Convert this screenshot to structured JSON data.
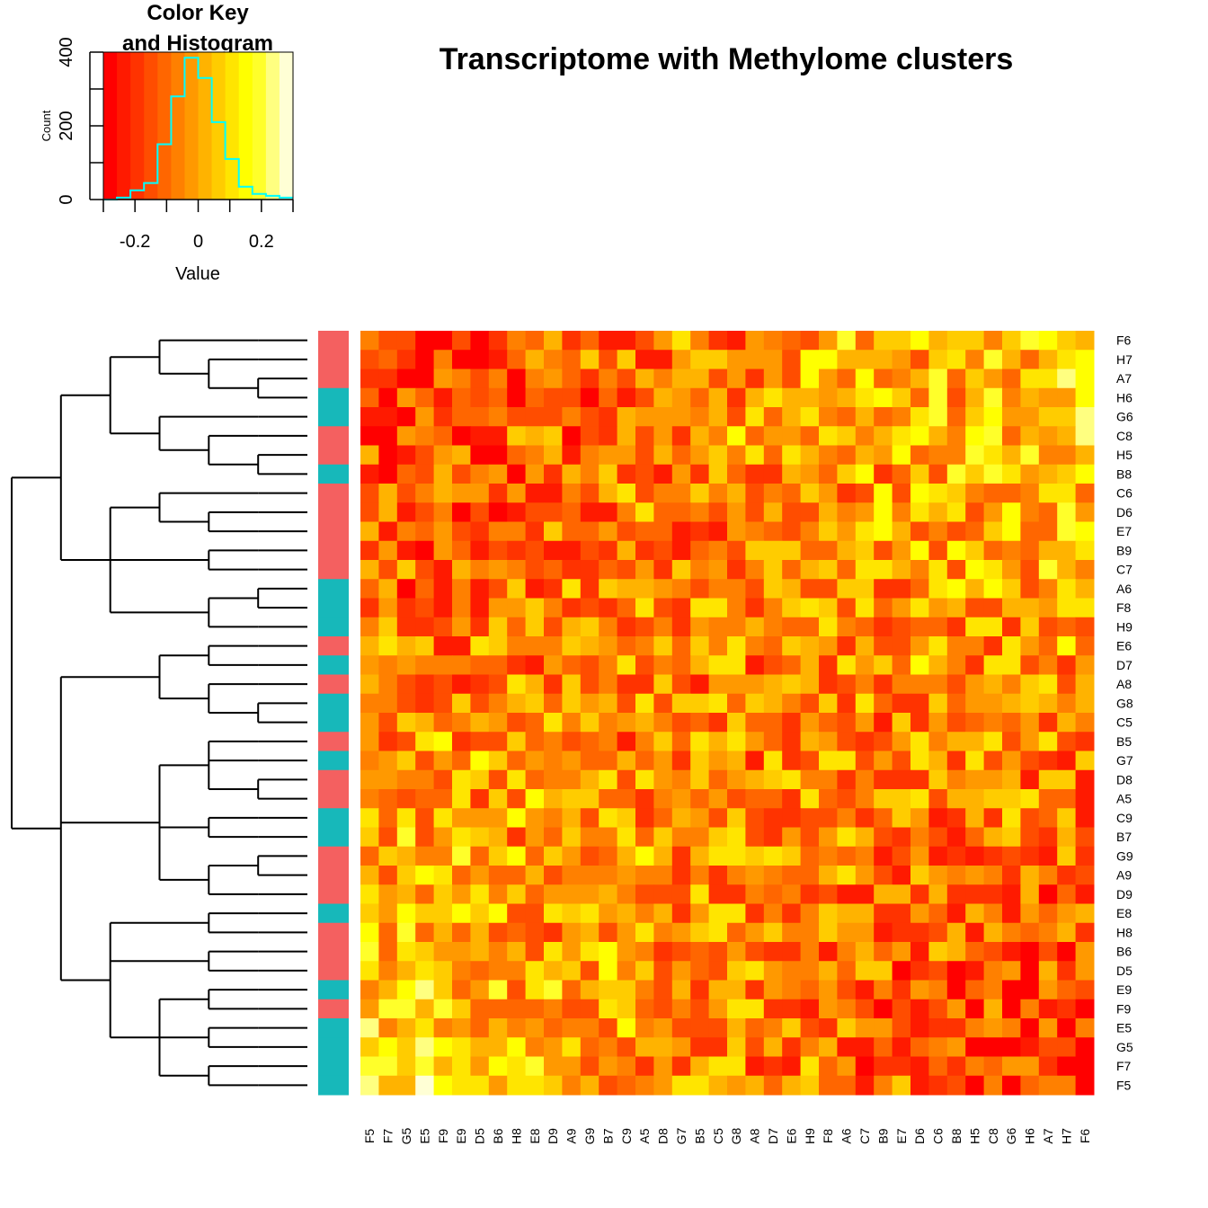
{
  "chart_data": {
    "type": "heatmap",
    "title": "Transcriptome with Methylome clusters",
    "row_labels": [
      "F6",
      "H7",
      "A7",
      "H6",
      "G6",
      "C8",
      "H5",
      "B8",
      "C6",
      "D6",
      "E7",
      "B9",
      "C7",
      "A6",
      "F8",
      "H9",
      "E6",
      "D7",
      "A8",
      "G8",
      "C5",
      "B5",
      "G7",
      "D8",
      "A5",
      "C9",
      "B7",
      "G9",
      "A9",
      "D9",
      "E8",
      "H8",
      "B6",
      "D5",
      "E9",
      "F9",
      "E5",
      "G5",
      "F7",
      "F5"
    ],
    "col_labels": [
      "F5",
      "F7",
      "G5",
      "E5",
      "F9",
      "E9",
      "D5",
      "B6",
      "H8",
      "E8",
      "D9",
      "A9",
      "G9",
      "B7",
      "C9",
      "A5",
      "D8",
      "G7",
      "B5",
      "C5",
      "G8",
      "A8",
      "D7",
      "E6",
      "H9",
      "F8",
      "A6",
      "C7",
      "B9",
      "E7",
      "D6",
      "C6",
      "B8",
      "H5",
      "C8",
      "G6",
      "H6",
      "A7",
      "H7",
      "F6"
    ],
    "row_cluster_colors": [
      "#F46060",
      "#F46060",
      "#F46060",
      "#17B8BA",
      "#17B8BA",
      "#F46060",
      "#F46060",
      "#17B8BA",
      "#F46060",
      "#F46060",
      "#F46060",
      "#F46060",
      "#F46060",
      "#17B8BA",
      "#17B8BA",
      "#17B8BA",
      "#F46060",
      "#17B8BA",
      "#F46060",
      "#17B8BA",
      "#17B8BA",
      "#F46060",
      "#17B8BA",
      "#F46060",
      "#F46060",
      "#17B8BA",
      "#17B8BA",
      "#F46060",
      "#F46060",
      "#F46060",
      "#17B8BA",
      "#F46060",
      "#F46060",
      "#F46060",
      "#17B8BA",
      "#F46060",
      "#17B8BA",
      "#17B8BA",
      "#17B8BA",
      "#17B8BA"
    ],
    "palette": [
      "#FF0000",
      "#FF1A00",
      "#FF3300",
      "#FF4D00",
      "#FF6600",
      "#FF8000",
      "#FF9900",
      "#FFB300",
      "#FFCC00",
      "#FFE500",
      "#FFFF00",
      "#FFFF2A",
      "#FFFF80",
      "#FFFFD5"
    ],
    "color_key": {
      "title_line1": "Color Key",
      "title_line2": "and Histogram",
      "xlabel": "Value",
      "ylabel": "Count",
      "x_range": [
        -0.3,
        0.3
      ],
      "y_range": [
        0,
        400
      ],
      "x_ticks": [
        -0.2,
        0,
        0.2
      ],
      "x_tick_labels": [
        "-0.2",
        "0",
        "0.2"
      ],
      "y_tick_labels": [
        "0",
        "200",
        "400"
      ],
      "hist_color": "#00FFFF",
      "hist_counts": [
        0,
        5,
        25,
        45,
        150,
        280,
        385,
        330,
        210,
        110,
        35,
        15,
        10,
        5
      ]
    }
  }
}
